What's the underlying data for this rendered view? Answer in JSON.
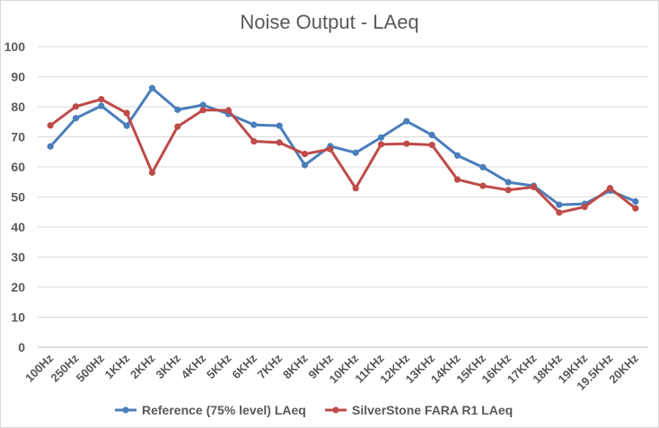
{
  "chart_data": {
    "type": "line",
    "title": "Noise Output - LAeq",
    "xlabel": "",
    "ylabel": "",
    "ylim": [
      0,
      100
    ],
    "y_ticks": [
      0,
      10,
      20,
      30,
      40,
      50,
      60,
      70,
      80,
      90,
      100
    ],
    "grid": true,
    "legend_position": "bottom",
    "categories": [
      "100Hz",
      "250Hz",
      "500Hz",
      "1KHz",
      "2KHz",
      "3KHz",
      "4KHz",
      "5KHz",
      "6KHz",
      "7KHz",
      "8KHz",
      "9KHz",
      "10KHz",
      "11KHz",
      "12KHz",
      "13KHz",
      "14KHz",
      "15KHz",
      "16KHz",
      "17KHz",
      "18KHz",
      "19KHz",
      "19.5KHz",
      "20KHz"
    ],
    "series": [
      {
        "name": "Reference (75% level) LAeq",
        "color": "#4a7ebb",
        "values": [
          66.8,
          76.2,
          80.3,
          73.7,
          86.2,
          79.0,
          80.6,
          77.6,
          74.0,
          73.7,
          60.6,
          66.9,
          64.7,
          69.8,
          75.2,
          70.6,
          63.8,
          59.9,
          54.9,
          53.7,
          47.4,
          47.7,
          52.1,
          48.5
        ]
      },
      {
        "name": "SilverStone FARA R1 LAeq",
        "color": "#be4b48",
        "values": [
          73.8,
          80.1,
          82.5,
          77.9,
          58.1,
          73.4,
          78.9,
          78.8,
          68.5,
          68.1,
          64.3,
          65.9,
          52.9,
          67.5,
          67.7,
          67.3,
          55.8,
          53.7,
          52.3,
          53.3,
          44.8,
          46.7,
          52.9,
          46.2
        ]
      }
    ]
  },
  "grid_color": "#d9d9d9",
  "axis_color": "#bfbfbf"
}
